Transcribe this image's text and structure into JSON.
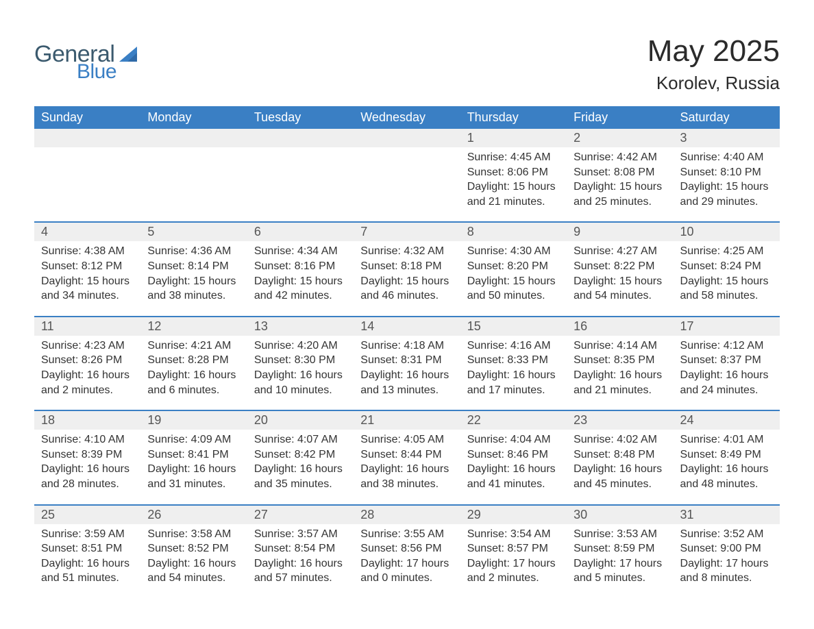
{
  "logo": {
    "general": "General",
    "blue": "Blue"
  },
  "title": "May 2025",
  "subtitle": "Korolev, Russia",
  "colors": {
    "header_bg": "#3a7fc4",
    "header_text": "#ffffff",
    "daynum_bg": "#efefef",
    "border": "#3a7fc4",
    "body_text": "#333333",
    "logo_dark": "#3b5a6e",
    "logo_blue": "#3a7fc4",
    "page_bg": "#ffffff"
  },
  "weekdays": [
    "Sunday",
    "Monday",
    "Tuesday",
    "Wednesday",
    "Thursday",
    "Friday",
    "Saturday"
  ],
  "labels": {
    "sunrise": "Sunrise:",
    "sunset": "Sunset:",
    "daylight": "Daylight:"
  },
  "weeks": [
    [
      null,
      null,
      null,
      null,
      {
        "day": "1",
        "sunrise": "4:45 AM",
        "sunset": "8:06 PM",
        "daylight": "15 hours and 21 minutes."
      },
      {
        "day": "2",
        "sunrise": "4:42 AM",
        "sunset": "8:08 PM",
        "daylight": "15 hours and 25 minutes."
      },
      {
        "day": "3",
        "sunrise": "4:40 AM",
        "sunset": "8:10 PM",
        "daylight": "15 hours and 29 minutes."
      }
    ],
    [
      {
        "day": "4",
        "sunrise": "4:38 AM",
        "sunset": "8:12 PM",
        "daylight": "15 hours and 34 minutes."
      },
      {
        "day": "5",
        "sunrise": "4:36 AM",
        "sunset": "8:14 PM",
        "daylight": "15 hours and 38 minutes."
      },
      {
        "day": "6",
        "sunrise": "4:34 AM",
        "sunset": "8:16 PM",
        "daylight": "15 hours and 42 minutes."
      },
      {
        "day": "7",
        "sunrise": "4:32 AM",
        "sunset": "8:18 PM",
        "daylight": "15 hours and 46 minutes."
      },
      {
        "day": "8",
        "sunrise": "4:30 AM",
        "sunset": "8:20 PM",
        "daylight": "15 hours and 50 minutes."
      },
      {
        "day": "9",
        "sunrise": "4:27 AM",
        "sunset": "8:22 PM",
        "daylight": "15 hours and 54 minutes."
      },
      {
        "day": "10",
        "sunrise": "4:25 AM",
        "sunset": "8:24 PM",
        "daylight": "15 hours and 58 minutes."
      }
    ],
    [
      {
        "day": "11",
        "sunrise": "4:23 AM",
        "sunset": "8:26 PM",
        "daylight": "16 hours and 2 minutes."
      },
      {
        "day": "12",
        "sunrise": "4:21 AM",
        "sunset": "8:28 PM",
        "daylight": "16 hours and 6 minutes."
      },
      {
        "day": "13",
        "sunrise": "4:20 AM",
        "sunset": "8:30 PM",
        "daylight": "16 hours and 10 minutes."
      },
      {
        "day": "14",
        "sunrise": "4:18 AM",
        "sunset": "8:31 PM",
        "daylight": "16 hours and 13 minutes."
      },
      {
        "day": "15",
        "sunrise": "4:16 AM",
        "sunset": "8:33 PM",
        "daylight": "16 hours and 17 minutes."
      },
      {
        "day": "16",
        "sunrise": "4:14 AM",
        "sunset": "8:35 PM",
        "daylight": "16 hours and 21 minutes."
      },
      {
        "day": "17",
        "sunrise": "4:12 AM",
        "sunset": "8:37 PM",
        "daylight": "16 hours and 24 minutes."
      }
    ],
    [
      {
        "day": "18",
        "sunrise": "4:10 AM",
        "sunset": "8:39 PM",
        "daylight": "16 hours and 28 minutes."
      },
      {
        "day": "19",
        "sunrise": "4:09 AM",
        "sunset": "8:41 PM",
        "daylight": "16 hours and 31 minutes."
      },
      {
        "day": "20",
        "sunrise": "4:07 AM",
        "sunset": "8:42 PM",
        "daylight": "16 hours and 35 minutes."
      },
      {
        "day": "21",
        "sunrise": "4:05 AM",
        "sunset": "8:44 PM",
        "daylight": "16 hours and 38 minutes."
      },
      {
        "day": "22",
        "sunrise": "4:04 AM",
        "sunset": "8:46 PM",
        "daylight": "16 hours and 41 minutes."
      },
      {
        "day": "23",
        "sunrise": "4:02 AM",
        "sunset": "8:48 PM",
        "daylight": "16 hours and 45 minutes."
      },
      {
        "day": "24",
        "sunrise": "4:01 AM",
        "sunset": "8:49 PM",
        "daylight": "16 hours and 48 minutes."
      }
    ],
    [
      {
        "day": "25",
        "sunrise": "3:59 AM",
        "sunset": "8:51 PM",
        "daylight": "16 hours and 51 minutes."
      },
      {
        "day": "26",
        "sunrise": "3:58 AM",
        "sunset": "8:52 PM",
        "daylight": "16 hours and 54 minutes."
      },
      {
        "day": "27",
        "sunrise": "3:57 AM",
        "sunset": "8:54 PM",
        "daylight": "16 hours and 57 minutes."
      },
      {
        "day": "28",
        "sunrise": "3:55 AM",
        "sunset": "8:56 PM",
        "daylight": "17 hours and 0 minutes."
      },
      {
        "day": "29",
        "sunrise": "3:54 AM",
        "sunset": "8:57 PM",
        "daylight": "17 hours and 2 minutes."
      },
      {
        "day": "30",
        "sunrise": "3:53 AM",
        "sunset": "8:59 PM",
        "daylight": "17 hours and 5 minutes."
      },
      {
        "day": "31",
        "sunrise": "3:52 AM",
        "sunset": "9:00 PM",
        "daylight": "17 hours and 8 minutes."
      }
    ]
  ]
}
